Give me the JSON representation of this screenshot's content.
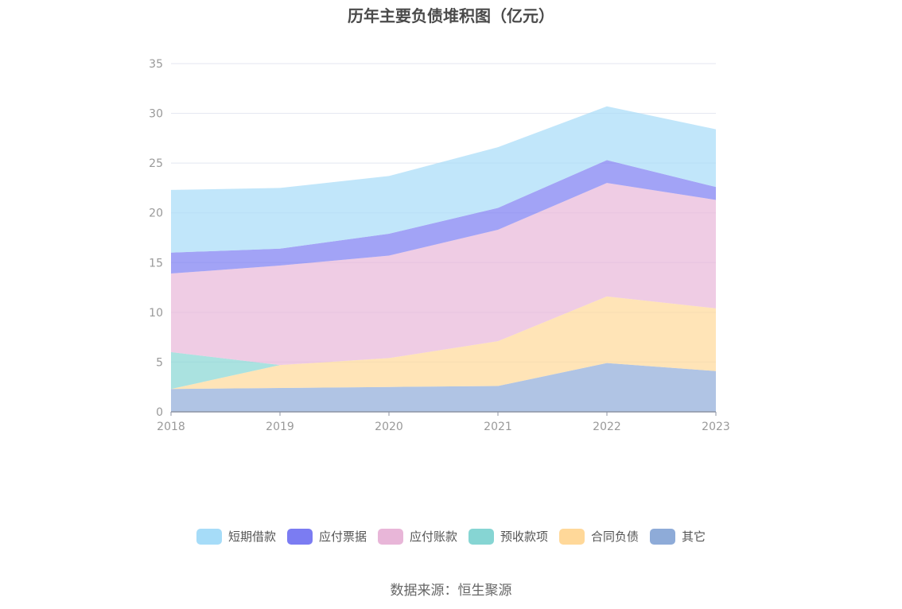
{
  "chart_data": {
    "type": "area",
    "stacked": true,
    "title": "历年主要负债堆积图（亿元）",
    "xlabel": "",
    "ylabel": "",
    "ylim": [
      0,
      35
    ],
    "yticks": [
      0,
      5,
      10,
      15,
      20,
      25,
      30,
      35
    ],
    "categories": [
      "2018",
      "2019",
      "2020",
      "2021",
      "2022",
      "2023"
    ],
    "grid": true,
    "legend_position": "bottom",
    "series": [
      {
        "name": "其它",
        "color": "#8eabd8",
        "values": [
          2.3,
          2.4,
          2.5,
          2.6,
          4.9,
          4.1
        ]
      },
      {
        "name": "合同负债",
        "color": "#ffd899",
        "values": [
          0,
          2.3,
          2.9,
          4.5,
          6.7,
          6.3
        ]
      },
      {
        "name": "预收款项",
        "color": "#86d5d3",
        "values": [
          3.7,
          0,
          0,
          0,
          0,
          0
        ]
      },
      {
        "name": "应付账款",
        "color": "#e8b6d8",
        "values": [
          7.9,
          10.0,
          10.3,
          11.2,
          11.4,
          10.9
        ]
      },
      {
        "name": "应付票据",
        "color": "#7b7cf2",
        "values": [
          2.1,
          1.7,
          2.2,
          2.2,
          2.3,
          1.3
        ]
      },
      {
        "name": "短期借款",
        "color": "#a6dcf8",
        "values": [
          6.3,
          6.1,
          5.8,
          6.1,
          5.4,
          5.8
        ]
      }
    ],
    "legend_order": [
      "短期借款",
      "应付票据",
      "应付账款",
      "预收款项",
      "合同负债",
      "其它"
    ]
  },
  "source_text": "数据来源：恒生聚源"
}
